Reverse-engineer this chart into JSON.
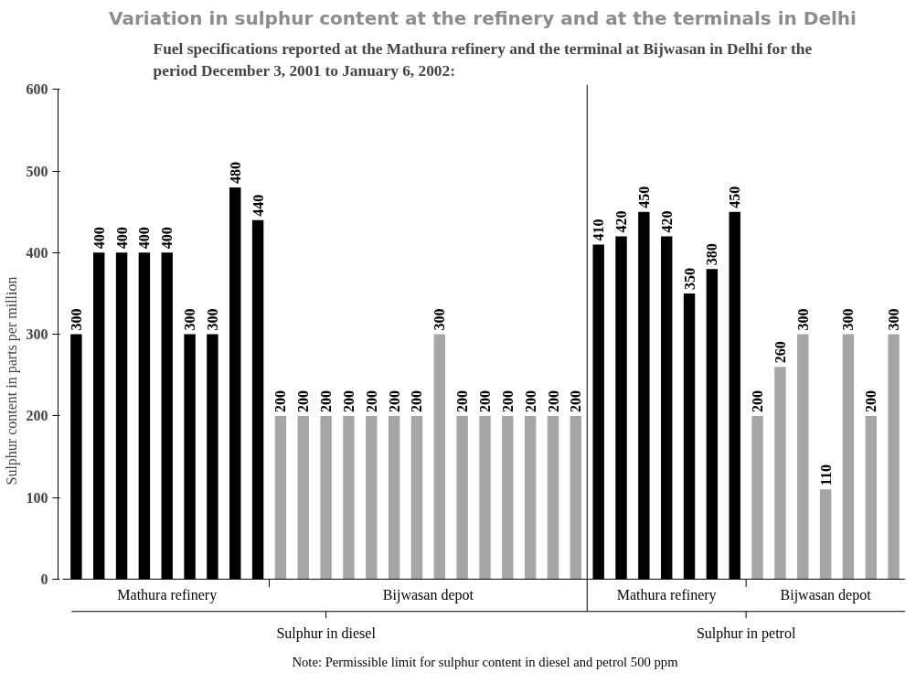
{
  "chart_data": {
    "type": "bar",
    "title": "Variation in sulphur content at the refinery and at the terminals in Delhi",
    "subtitle": "Fuel specifications reported at the Mathura refinery and the terminal at Bijwasan in Delhi for the period December 3, 2001 to January 6, 2002:",
    "ylabel": "Sulphur content in parts per million",
    "categories": [
      null,
      null,
      null,
      null,
      null,
      null,
      null,
      null,
      null,
      null,
      null,
      null,
      null,
      null,
      null,
      null,
      null,
      null,
      null,
      null,
      null,
      null,
      null,
      null,
      null,
      null,
      null,
      null,
      null,
      null,
      null,
      null,
      null,
      null,
      null,
      null,
      null
    ],
    "series": [
      {
        "name": "Mathura refinery",
        "color": "#000000",
        "values": [
          300,
          400,
          400,
          400,
          400,
          300,
          300,
          480,
          440,
          null,
          null,
          null,
          null,
          null,
          null,
          null,
          null,
          null,
          null,
          null,
          null,
          null,
          null,
          410,
          420,
          450,
          420,
          350,
          380,
          450,
          null,
          null,
          null,
          null,
          null,
          null,
          null
        ]
      },
      {
        "name": "Bijwasan depot",
        "color": "#a6a6a6",
        "values": [
          null,
          null,
          null,
          null,
          null,
          null,
          null,
          null,
          null,
          200,
          200,
          200,
          200,
          200,
          200,
          200,
          300,
          200,
          200,
          200,
          200,
          200,
          200,
          null,
          null,
          null,
          null,
          null,
          null,
          null,
          200,
          260,
          300,
          110,
          300,
          200,
          300
        ]
      }
    ],
    "ylim": [
      0,
      600
    ],
    "yticks": [
      0,
      100,
      200,
      300,
      400,
      500,
      600
    ],
    "grid": false,
    "data_labels": true,
    "annotations": [
      "Sulphur in diesel",
      "Sulphur in petrol",
      "Note: Permissible limit for sulphur content in diesel and petrol 500 ppm"
    ]
  }
}
